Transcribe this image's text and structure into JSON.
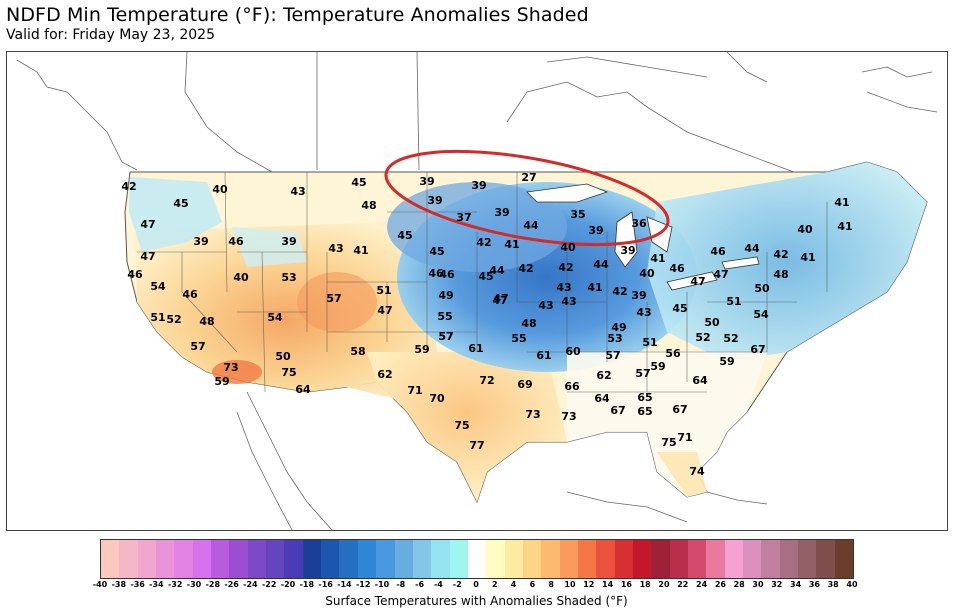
{
  "header": {
    "title": "NDFD Min Temperature (°F): Temperature Anomalies Shaded",
    "valid": "Valid for: Friday May 23, 2025"
  },
  "map": {
    "annotation_color": "#d42a2a",
    "temps": [
      {
        "id": "t1",
        "v": "42"
      },
      {
        "id": "t2",
        "v": "45"
      },
      {
        "id": "t3",
        "v": "40"
      },
      {
        "id": "t4",
        "v": "43"
      },
      {
        "id": "t5",
        "v": "45"
      },
      {
        "id": "t6",
        "v": "48"
      },
      {
        "id": "t7",
        "v": "47"
      },
      {
        "id": "t8",
        "v": "39"
      },
      {
        "id": "t9",
        "v": "46"
      },
      {
        "id": "t10",
        "v": "39"
      },
      {
        "id": "t11",
        "v": "43"
      },
      {
        "id": "t12",
        "v": "41"
      },
      {
        "id": "t13",
        "v": "45"
      },
      {
        "id": "t14",
        "v": "47"
      },
      {
        "id": "t15",
        "v": "46"
      },
      {
        "id": "t16",
        "v": "40"
      },
      {
        "id": "t17",
        "v": "53"
      },
      {
        "id": "t18",
        "v": "54"
      },
      {
        "id": "t19",
        "v": "46"
      },
      {
        "id": "t20",
        "v": "57"
      },
      {
        "id": "t21",
        "v": "51"
      },
      {
        "id": "t22",
        "v": "47"
      },
      {
        "id": "t23",
        "v": "51"
      },
      {
        "id": "t24",
        "v": "52"
      },
      {
        "id": "t25",
        "v": "48"
      },
      {
        "id": "t26",
        "v": "54"
      },
      {
        "id": "t27",
        "v": "57"
      },
      {
        "id": "t28",
        "v": "50"
      },
      {
        "id": "t29",
        "v": "58"
      },
      {
        "id": "t30",
        "v": "73"
      },
      {
        "id": "t31",
        "v": "75"
      },
      {
        "id": "t32",
        "v": "62"
      },
      {
        "id": "t33",
        "v": "59"
      },
      {
        "id": "t34",
        "v": "64"
      },
      {
        "id": "t35",
        "v": "71"
      },
      {
        "id": "t36",
        "v": "70"
      },
      {
        "id": "t37",
        "v": "75"
      },
      {
        "id": "t38",
        "v": "77"
      },
      {
        "id": "t39",
        "v": "39"
      },
      {
        "id": "t40",
        "v": "39"
      },
      {
        "id": "t41",
        "v": "27"
      },
      {
        "id": "t42",
        "v": "39"
      },
      {
        "id": "t43",
        "v": "39"
      },
      {
        "id": "t44",
        "v": "37"
      },
      {
        "id": "t45",
        "v": "44"
      },
      {
        "id": "t46",
        "v": "35"
      },
      {
        "id": "t47",
        "v": "39"
      },
      {
        "id": "t48",
        "v": "36"
      },
      {
        "id": "t49",
        "v": "42"
      },
      {
        "id": "t50",
        "v": "41"
      },
      {
        "id": "t51",
        "v": "40"
      },
      {
        "id": "t52",
        "v": "45"
      },
      {
        "id": "t53",
        "v": "46"
      },
      {
        "id": "t54",
        "v": "45"
      },
      {
        "id": "t55",
        "v": "44"
      },
      {
        "id": "t56",
        "v": "42"
      },
      {
        "id": "t57",
        "v": "42"
      },
      {
        "id": "t58",
        "v": "44"
      },
      {
        "id": "t59",
        "v": "39"
      },
      {
        "id": "t60",
        "v": "41"
      },
      {
        "id": "t61",
        "v": "49"
      },
      {
        "id": "t62",
        "v": "47"
      },
      {
        "id": "t63",
        "v": "43"
      },
      {
        "id": "t64",
        "v": "43"
      },
      {
        "id": "t65",
        "v": "43"
      },
      {
        "id": "t66",
        "v": "41"
      },
      {
        "id": "t67",
        "v": "42"
      },
      {
        "id": "t68",
        "v": "40"
      },
      {
        "id": "t69",
        "v": "39"
      },
      {
        "id": "t70",
        "v": "46"
      },
      {
        "id": "t71",
        "v": "55"
      },
      {
        "id": "t72",
        "v": "48"
      },
      {
        "id": "t73",
        "v": "57"
      },
      {
        "id": "t74",
        "v": "55"
      },
      {
        "id": "t75",
        "v": "43"
      },
      {
        "id": "t76",
        "v": "49"
      },
      {
        "id": "t77",
        "v": "45"
      },
      {
        "id": "t78",
        "v": "47"
      },
      {
        "id": "t79",
        "v": "61"
      },
      {
        "id": "t80",
        "v": "59"
      },
      {
        "id": "t81",
        "v": "61"
      },
      {
        "id": "t82",
        "v": "60"
      },
      {
        "id": "t83",
        "v": "53"
      },
      {
        "id": "t84",
        "v": "51"
      },
      {
        "id": "t85",
        "v": "56"
      },
      {
        "id": "t86",
        "v": "52"
      },
      {
        "id": "t87",
        "v": "72"
      },
      {
        "id": "t88",
        "v": "69"
      },
      {
        "id": "t89",
        "v": "66"
      },
      {
        "id": "t90",
        "v": "62"
      },
      {
        "id": "t91",
        "v": "57"
      },
      {
        "id": "t92",
        "v": "57"
      },
      {
        "id": "t93",
        "v": "59"
      },
      {
        "id": "t94",
        "v": "64"
      },
      {
        "id": "t95",
        "v": "64"
      },
      {
        "id": "t96",
        "v": "65"
      },
      {
        "id": "t97",
        "v": "67"
      },
      {
        "id": "t98",
        "v": "73"
      },
      {
        "id": "t99",
        "v": "73"
      },
      {
        "id": "t100",
        "v": "65"
      },
      {
        "id": "t101",
        "v": "67"
      },
      {
        "id": "t102",
        "v": "75"
      },
      {
        "id": "t103",
        "v": "71"
      },
      {
        "id": "t104",
        "v": "74"
      },
      {
        "id": "t105",
        "v": "46"
      },
      {
        "id": "t106",
        "v": "44"
      },
      {
        "id": "t107",
        "v": "42"
      },
      {
        "id": "t108",
        "v": "40"
      },
      {
        "id": "t109",
        "v": "41"
      },
      {
        "id": "t110",
        "v": "41"
      },
      {
        "id": "t111",
        "v": "41"
      },
      {
        "id": "t112",
        "v": "48"
      },
      {
        "id": "t113",
        "v": "47"
      },
      {
        "id": "t114",
        "v": "51"
      },
      {
        "id": "t115",
        "v": "50"
      },
      {
        "id": "t116",
        "v": "54"
      },
      {
        "id": "t117",
        "v": "50"
      },
      {
        "id": "t118",
        "v": "52"
      },
      {
        "id": "t119",
        "v": "67"
      },
      {
        "id": "t120",
        "v": "59"
      },
      {
        "id": "t121",
        "v": "46"
      },
      {
        "id": "t122",
        "v": "47"
      },
      {
        "id": "t123",
        "v": "57"
      }
    ]
  },
  "colorbar": {
    "label": "Surface Temperatures with Anomalies Shaded (°F)",
    "ticks": [
      "-40",
      "-38",
      "-36",
      "-34",
      "-32",
      "-30",
      "-28",
      "-26",
      "-24",
      "-22",
      "-20",
      "-18",
      "-16",
      "-14",
      "-12",
      "-10",
      "-8",
      "-6",
      "-4",
      "-2",
      "0",
      "2",
      "4",
      "6",
      "8",
      "10",
      "12",
      "14",
      "16",
      "18",
      "20",
      "22",
      "24",
      "26",
      "28",
      "30",
      "32",
      "34",
      "36",
      "38",
      "40"
    ],
    "colors": [
      "#f9c9bd",
      "#f5b7c6",
      "#f0a6cf",
      "#e994d8",
      "#e283e3",
      "#d871ec",
      "#b95bdf",
      "#9a4ed0",
      "#7d49c4",
      "#6345bd",
      "#4a3cb6",
      "#193f97",
      "#1b58ad",
      "#246fc0",
      "#2f86d6",
      "#4899e0",
      "#67addf",
      "#85c5ea",
      "#95e2f0",
      "#9ef6ee",
      "#ffffff",
      "#fffdc2",
      "#feeaa1",
      "#fed487",
      "#fcba71",
      "#fa9b5d",
      "#f47748",
      "#eb523e",
      "#d83030",
      "#c2182a",
      "#9d2139",
      "#b82e4b",
      "#d44a6c",
      "#e87aa0",
      "#f7a1d2",
      "#dd8fbd",
      "#c0809d",
      "#a86e84",
      "#936068",
      "#7f4d4c",
      "#6b3e2c"
    ]
  }
}
